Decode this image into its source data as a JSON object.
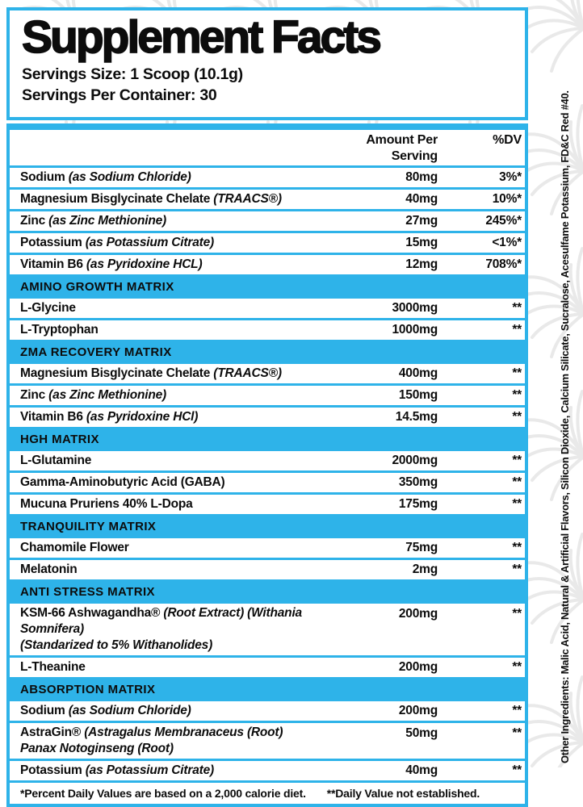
{
  "colors": {
    "accent": "#2eb3e9",
    "text": "#0c0c0c",
    "watermark": "#e9e9e9"
  },
  "header": {
    "title": "Supplement Facts",
    "serving_size": "Servings Size: 1 Scoop (10.1g)",
    "servings_per_container": "Servings Per Container: 30"
  },
  "table": {
    "columns": {
      "amount": "Amount Per Serving",
      "dv": "%DV"
    },
    "rows": [
      {
        "type": "ingredient",
        "name": "Sodium",
        "name_italic": "(as Sodium Chloride)",
        "amount": "80mg",
        "dv": "3%*"
      },
      {
        "type": "ingredient",
        "name": "Magnesium Bisglycinate Chelate",
        "name_italic": "(TRAACS®)",
        "amount": "40mg",
        "dv": "10%*"
      },
      {
        "type": "ingredient",
        "name": "Zinc",
        "name_italic": "(as Zinc Methionine)",
        "amount": "27mg",
        "dv": "245%*"
      },
      {
        "type": "ingredient",
        "name": "Potassium",
        "name_italic": "(as Potassium Citrate)",
        "amount": "15mg",
        "dv": "<1%*"
      },
      {
        "type": "ingredient",
        "name": "Vitamin B6",
        "name_italic": "(as Pyridoxine HCL)",
        "amount": "12mg",
        "dv": "708%*"
      },
      {
        "type": "section",
        "label": "AMINO GROWTH MATRIX"
      },
      {
        "type": "ingredient",
        "name": "L-Glycine",
        "amount": "3000mg",
        "dv": "**"
      },
      {
        "type": "ingredient",
        "name": "L-Tryptophan",
        "amount": "1000mg",
        "dv": "**"
      },
      {
        "type": "section",
        "label": "ZMA RECOVERY MATRIX"
      },
      {
        "type": "ingredient",
        "name": "Magnesium Bisglycinate Chelate",
        "name_italic": "(TRAACS®)",
        "amount": "400mg",
        "dv": "**"
      },
      {
        "type": "ingredient",
        "name": "Zinc",
        "name_italic": "(as Zinc Methionine)",
        "amount": "150mg",
        "dv": "**"
      },
      {
        "type": "ingredient",
        "name": "Vitamin B6",
        "name_italic": "(as Pyridoxine HCl)",
        "amount": "14.5mg",
        "dv": "**"
      },
      {
        "type": "section",
        "label": "HGH MATRIX"
      },
      {
        "type": "ingredient",
        "name": "L-Glutamine",
        "amount": "2000mg",
        "dv": "**"
      },
      {
        "type": "ingredient",
        "name": "Gamma-Aminobutyric Acid (GABA)",
        "amount": "350mg",
        "dv": "**"
      },
      {
        "type": "ingredient",
        "name": "Mucuna Pruriens 40% L-Dopa",
        "amount": "175mg",
        "dv": "**"
      },
      {
        "type": "section",
        "label": "TRANQUILITY MATRIX"
      },
      {
        "type": "ingredient",
        "name": "Chamomile Flower",
        "amount": "75mg",
        "dv": "**"
      },
      {
        "type": "ingredient",
        "name": "Melatonin",
        "amount": "2mg",
        "dv": "**"
      },
      {
        "type": "section",
        "label": "ANTI STRESS MATRIX"
      },
      {
        "type": "ingredient",
        "name": "KSM-66 Ashwagandha®",
        "name_italic": "(Root Extract) (Withania Somnifera)",
        "name_line2": "(Standarized to 5% Withanolides)",
        "amount": "200mg",
        "dv": "**"
      },
      {
        "type": "ingredient",
        "name": "L-Theanine",
        "amount": "200mg",
        "dv": "**"
      },
      {
        "type": "section",
        "label": "ABSORPTION MATRIX"
      },
      {
        "type": "ingredient",
        "name": "Sodium",
        "name_italic": "(as Sodium Chloride)",
        "amount": "200mg",
        "dv": "**"
      },
      {
        "type": "ingredient",
        "name": "AstraGin®",
        "name_italic": "(Astragalus Membranaceus (Root)",
        "name_line2": "Panax Notoginseng (Root)",
        "amount": "50mg",
        "dv": "**"
      },
      {
        "type": "ingredient",
        "name": "Potassium",
        "name_italic": "(as Potassium Citrate)",
        "amount": "40mg",
        "dv": "**"
      }
    ],
    "footnote_dv": "*Percent Daily Values are based on a 2,000 calorie diet.",
    "footnote_established": "**Daily Value not established."
  },
  "side_panel": {
    "other_ingredients": "Other Ingredients: Malic Acid, Natural & Artificial Flavors, Silicon Dioxide, Calcium Silicate, Sucralose, Acesulfame Potassium, FD&C Red #40."
  }
}
